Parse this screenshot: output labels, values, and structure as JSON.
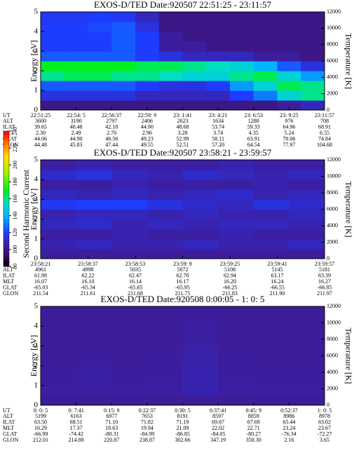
{
  "chart_data": [
    {
      "type": "heatmap",
      "title": "EXOS-D/TED   Date:920507  22:51:25 - 23:11:57",
      "ylabel": "Energy [eV]",
      "y2label": "Temperature [K]",
      "ylim": [
        0,
        5
      ],
      "yticks": [
        0,
        1,
        2,
        3,
        4,
        5
      ],
      "y2lim": [
        0,
        12000
      ],
      "y2ticks": [
        0,
        2000,
        4000,
        6000,
        8000,
        10000,
        12000
      ],
      "z": [
        [
          100,
          100,
          100,
          100,
          100,
          100,
          100,
          100,
          100,
          100,
          105,
          110
        ],
        [
          115,
          115,
          115,
          115,
          110,
          110,
          110,
          110,
          120,
          130,
          150,
          160
        ],
        [
          125,
          125,
          125,
          125,
          120,
          115,
          115,
          120,
          135,
          150,
          165,
          160
        ],
        [
          160,
          165,
          165,
          160,
          160,
          155,
          150,
          150,
          160,
          165,
          150,
          135
        ],
        [
          170,
          170,
          170,
          170,
          165,
          165,
          160,
          155,
          150,
          140,
          125,
          115
        ],
        [
          125,
          125,
          125,
          125,
          120,
          115,
          110,
          110,
          110,
          105,
          105,
          100
        ],
        [
          120,
          120,
          120,
          125,
          120,
          105,
          105,
          100,
          100,
          100,
          100,
          100
        ],
        [
          120,
          120,
          120,
          125,
          120,
          105,
          100,
          100,
          100,
          100,
          100,
          100
        ],
        [
          120,
          120,
          122,
          125,
          115,
          100,
          100,
          100,
          100,
          100,
          100,
          100
        ],
        [
          118,
          118,
          120,
          118,
          110,
          100,
          100,
          100,
          100,
          100,
          100,
          100
        ]
      ],
      "info": [
        {
          "label": "UT",
          "values": [
            "22:51:25",
            "22:54: 5",
            "22:56:37",
            "22:59: 9",
            "23: 1:41",
            "23: 4:21",
            "23: 6:53",
            "23: 9:25",
            "23:11:57"
          ]
        },
        {
          "label": "ALT",
          "values": [
            "3600",
            "3190",
            "2797",
            "2406",
            "2023",
            "1634",
            "1288",
            "976",
            "708"
          ]
        },
        {
          "label": "ILAT",
          "values": [
            "39.65",
            "40.48",
            "42.18",
            "44.90",
            "48.68",
            "53.74",
            "59.33",
            "64.96",
            "68.91"
          ]
        },
        {
          "label": "MLT",
          "values": [
            "2.30",
            "2.49",
            "2.70",
            "2.96",
            "3.28",
            "3.74",
            "4.35",
            "5.24",
            "6.55"
          ]
        },
        {
          "label": "GLAT",
          "values": [
            "44.06",
            "44.90",
            "46.56",
            "49.23",
            "52.99",
            "58.11",
            "63.91",
            "70.06",
            "74.84"
          ]
        },
        {
          "label": "GLON",
          "values": [
            "44.48",
            "45.83",
            "47.44",
            "49.55",
            "52.51",
            "57.20",
            "64.54",
            "77.97",
            "104.68"
          ]
        }
      ]
    },
    {
      "type": "heatmap",
      "title": "EXOS-D/TED   Date:920507  23:58:21 - 23:59:57",
      "ylabel": "Energy [eV]",
      "y2label": "Temperature [K]",
      "ylim": [
        0,
        5
      ],
      "yticks": [
        0,
        1,
        2,
        3,
        4,
        5
      ],
      "y2lim": [
        0,
        12000
      ],
      "y2ticks": [
        0,
        2000,
        4000,
        6000,
        8000,
        10000,
        12000
      ],
      "z": [
        [
          105,
          105,
          105,
          105,
          105,
          105,
          105,
          105
        ],
        [
          108,
          110,
          108,
          108,
          110,
          108,
          108,
          110
        ],
        [
          106,
          106,
          108,
          106,
          106,
          108,
          106,
          106
        ],
        [
          110,
          112,
          108,
          110,
          108,
          110,
          110,
          108
        ],
        [
          108,
          110,
          110,
          108,
          110,
          108,
          108,
          110
        ],
        [
          118,
          120,
          120,
          115,
          112,
          110,
          115,
          112
        ],
        [
          110,
          108,
          110,
          108,
          110,
          112,
          108,
          110
        ],
        [
          106,
          106,
          108,
          106,
          106,
          106,
          108,
          106
        ],
        [
          112,
          115,
          110,
          108,
          112,
          110,
          108,
          110
        ],
        [
          106,
          108,
          106,
          106,
          106,
          108,
          106,
          106
        ]
      ],
      "colorbar": {
        "label": "Second Harmonic Current",
        "lim": [
          80,
          240
        ],
        "ticks": [
          80,
          100,
          120,
          140,
          160,
          180,
          200,
          220,
          240
        ]
      },
      "info": [
        {
          "label": "UT",
          "values": [
            "23:58:21",
            "23:58:37",
            "23:58:53",
            "23:59: 9",
            "23:59:25",
            "23:59:41",
            "23:59:57"
          ]
        },
        {
          "label": "ALT",
          "values": [
            "4961",
            "4998",
            "5035",
            "5072",
            "5108",
            "5145",
            "5181"
          ]
        },
        {
          "label": "ILAT",
          "values": [
            "61.98",
            "62.22",
            "62.47",
            "62.70",
            "62.94",
            "63.17",
            "63.39"
          ]
        },
        {
          "label": "MLT",
          "values": [
            "16.07",
            "16.10",
            "16.14",
            "16.17",
            "16.20",
            "16.24",
            "16.27"
          ]
        },
        {
          "label": "GLAT",
          "values": [
            "-65.03",
            "-65.34",
            "-65.65",
            "-65.95",
            "-66.25",
            "-66.55",
            "-66.85"
          ]
        },
        {
          "label": "GLON",
          "values": [
            "211.54",
            "211.61",
            "211.68",
            "211.75",
            "211.83",
            "211.90",
            "211.97"
          ]
        }
      ]
    },
    {
      "type": "heatmap",
      "title": "EXOS-D/TED   Date:920508  0:00:05 - 1: 0: 5",
      "ylabel": "Energy [eV]",
      "y2label": "Temperature [K]",
      "ylim": [
        0,
        5
      ],
      "yticks": [
        0,
        1,
        2,
        3,
        4,
        5
      ],
      "y2lim": [
        0,
        12000
      ],
      "y2ticks": [
        0,
        2000,
        4000,
        6000,
        8000,
        10000,
        12000
      ],
      "z": [
        [
          104,
          104,
          104,
          104,
          104,
          104,
          104,
          104
        ],
        [
          106,
          106,
          106,
          106,
          108,
          106,
          106,
          106
        ],
        [
          105,
          106,
          105,
          106,
          108,
          106,
          105,
          105
        ],
        [
          105,
          106,
          105,
          105,
          108,
          105,
          105,
          105
        ],
        [
          104,
          105,
          105,
          105,
          107,
          105,
          104,
          104
        ],
        [
          104,
          105,
          104,
          105,
          107,
          105,
          104,
          104
        ],
        [
          104,
          104,
          104,
          104,
          106,
          104,
          104,
          104
        ],
        [
          104,
          104,
          104,
          104,
          106,
          104,
          104,
          104
        ],
        [
          104,
          104,
          104,
          104,
          105,
          104,
          104,
          104
        ],
        [
          104,
          104,
          104,
          104,
          105,
          104,
          104,
          104
        ]
      ],
      "info": [
        {
          "label": "UT",
          "values": [
            "0: 0: 5",
            "0: 7:41",
            "0:15: 9",
            "0:22:37",
            "0:30: 5",
            "0:37:41",
            "0:45: 9",
            "0:52:37",
            "1: 0: 5"
          ]
        },
        {
          "label": "ALT",
          "values": [
            "5199",
            "6163",
            "6977",
            "7653",
            "8191",
            "8597",
            "8859",
            "8986",
            "8978"
          ]
        },
        {
          "label": "ILAT",
          "values": [
            "63.50",
            "68.51",
            "71.10",
            "71.82",
            "71.19",
            "69.67",
            "67.69",
            "65.44",
            "63.02"
          ]
        },
        {
          "label": "MLT",
          "values": [
            "16.29",
            "17.37",
            "18.63",
            "19.94",
            "21.09",
            "22.02",
            "22.71",
            "23.24",
            "23.67"
          ]
        },
        {
          "label": "GLAT",
          "values": [
            "-66.99",
            "-74.42",
            "-80.31",
            "-84.99",
            "-86.85",
            "-84.05",
            "-80.27",
            "-76.34",
            "-72.27"
          ]
        },
        {
          "label": "GLON",
          "values": [
            "212.01",
            "214.88",
            "220.87",
            "238.87",
            "302.66",
            "347.19",
            "358.30",
            "2.16",
            "3.65"
          ]
        }
      ]
    }
  ]
}
